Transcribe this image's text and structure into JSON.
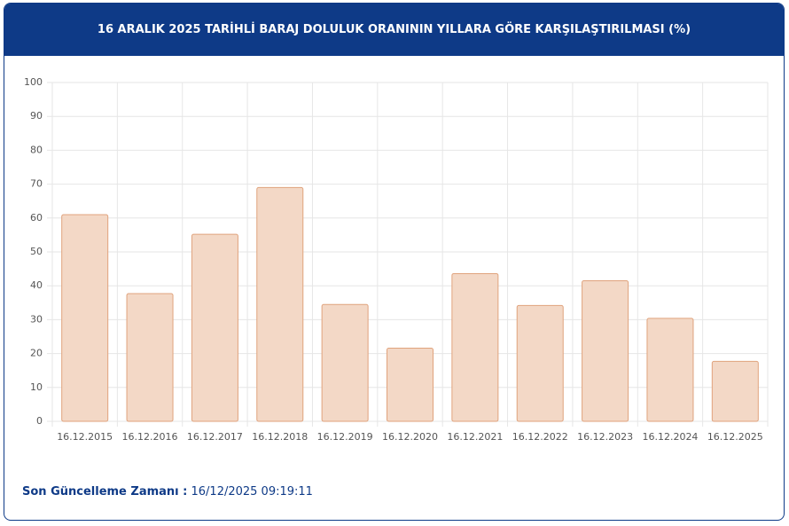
{
  "chart_data": {
    "type": "bar",
    "title": "16 ARALIK 2025 TARİHLİ BARAJ DOLULUK ORANININ YILLARA GÖRE KARŞILAŞTIRILMASI (%)",
    "categories": [
      "16.12.2015",
      "16.12.2016",
      "16.12.2017",
      "16.12.2018",
      "16.12.2019",
      "16.12.2020",
      "16.12.2021",
      "16.12.2022",
      "16.12.2023",
      "16.12.2024",
      "16.12.2025"
    ],
    "values": [
      61,
      37.7,
      55.2,
      69,
      34.5,
      21.6,
      43.6,
      34.2,
      41.5,
      30.4,
      17.7
    ],
    "color": "#f3d8c6",
    "border_color": "#e0a37d",
    "ylim": [
      0,
      100
    ],
    "yticks": [
      0,
      10,
      20,
      30,
      40,
      50,
      60,
      70,
      80,
      90,
      100
    ],
    "grid": true
  },
  "footer": {
    "label": "Son Güncelleme Zamanı :",
    "value": "16/12/2025 09:19:11"
  }
}
